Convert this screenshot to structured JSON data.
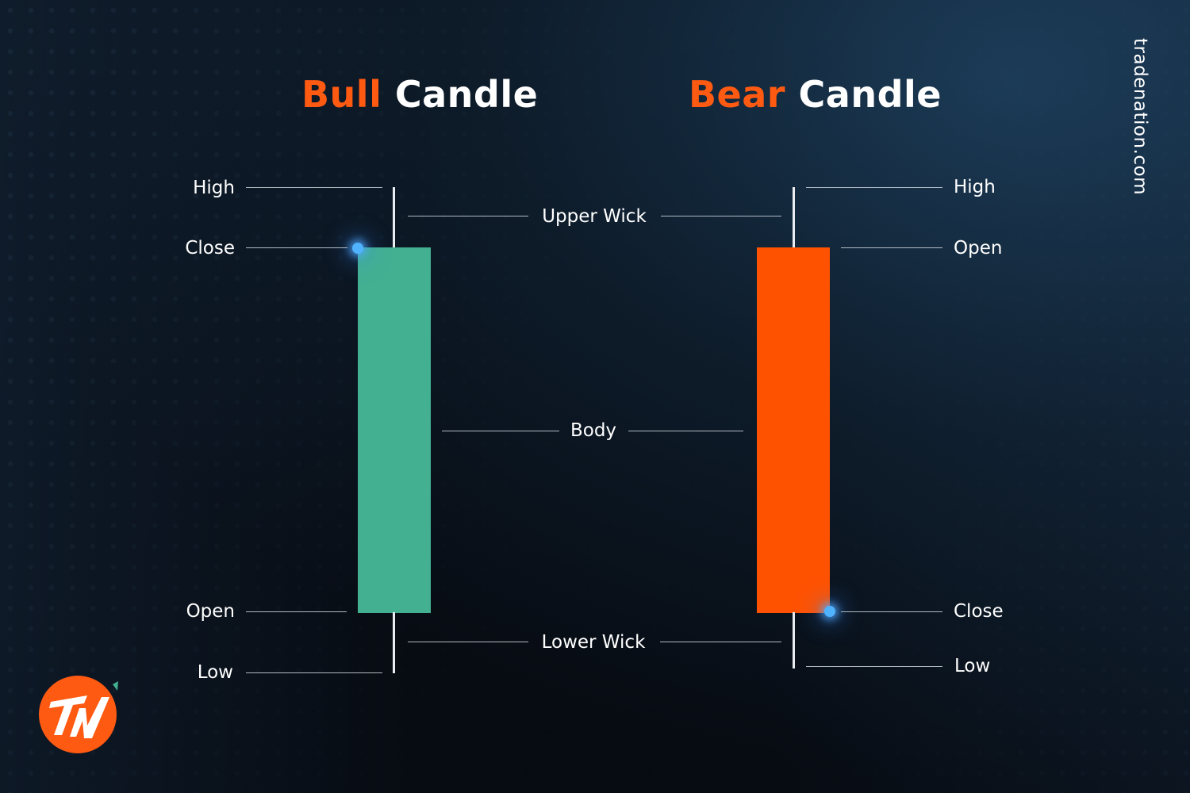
{
  "bull": {
    "title_accent": "Bull",
    "title_rest": " Candle",
    "high": "High",
    "close": "Close",
    "open": "Open",
    "low": "Low",
    "color": "#43b092"
  },
  "bear": {
    "title_accent": "Bear",
    "title_rest": " Candle",
    "high": "High",
    "open": "Open",
    "close": "Close",
    "low": "Low",
    "color": "#ff5200"
  },
  "center_labels": {
    "upper_wick": "Upper Wick",
    "body": "Body",
    "lower_wick": "Lower Wick"
  },
  "brand": {
    "site": "tradenation.com",
    "logo_color": "#ff5a12",
    "logo_accent_color": "#43b092"
  }
}
